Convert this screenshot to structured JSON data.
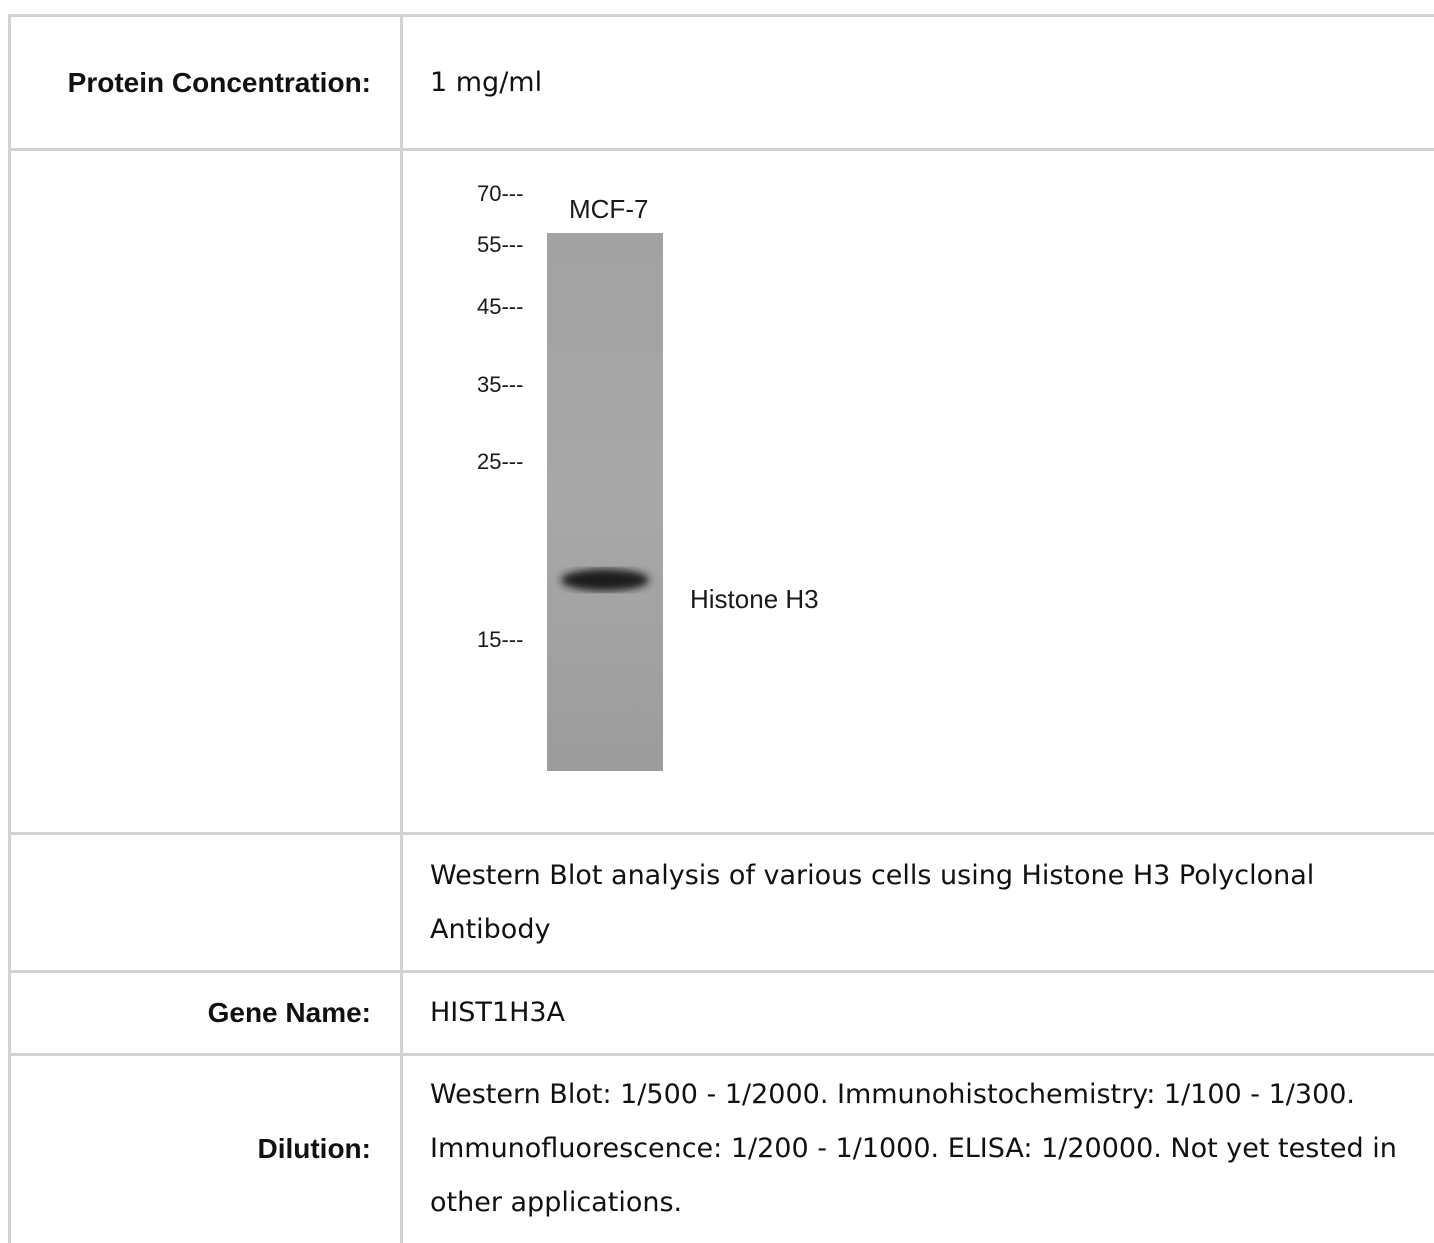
{
  "table": {
    "rows": [
      {
        "label": "Protein Concentration:",
        "value": "1 mg/ml"
      },
      {
        "blot": {
          "markers": [
            "70---",
            "55---",
            "45---",
            "35---",
            "25---",
            "15---"
          ],
          "lane": "MCF-7",
          "band": "Histone H3"
        }
      },
      {
        "value": "Western Blot analysis of various cells using Histone H3 Polyclonal Antibody"
      },
      {
        "label": "Gene Name:",
        "value": "HIST1H3A"
      },
      {
        "label": "Dilution:",
        "value": "Western Blot: 1/500 - 1/2000. Immunohistochemistry: 1/100 - 1/300. Immunofluorescence: 1/200 - 1/1000. ELISA: 1/20000. Not yet tested in other applications."
      }
    ]
  }
}
